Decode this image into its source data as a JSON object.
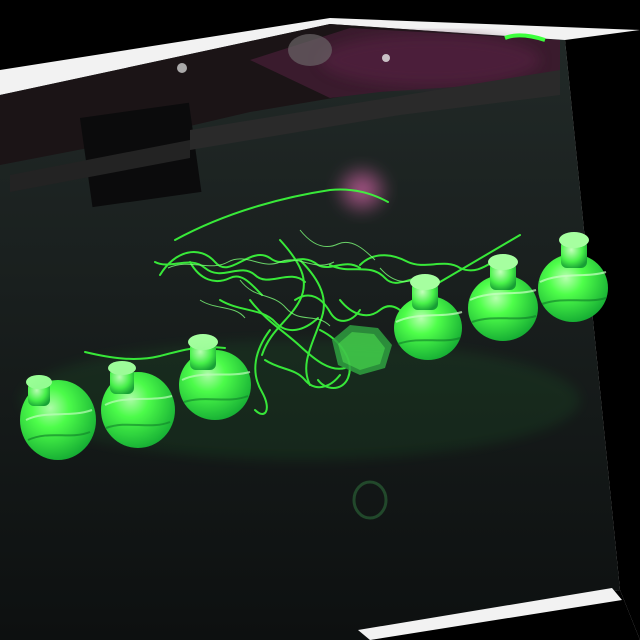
{
  "scene": {
    "subject": "green-translucent-3d-printed-bottles",
    "colors": {
      "background": "#000000",
      "photo_border": "#f2f2f2",
      "bed": "#141818",
      "filament": "#3cff3c",
      "filament_dark": "#18b83a",
      "print_glow": "#7dff7a",
      "machine_magenta": "#b03a86"
    }
  }
}
